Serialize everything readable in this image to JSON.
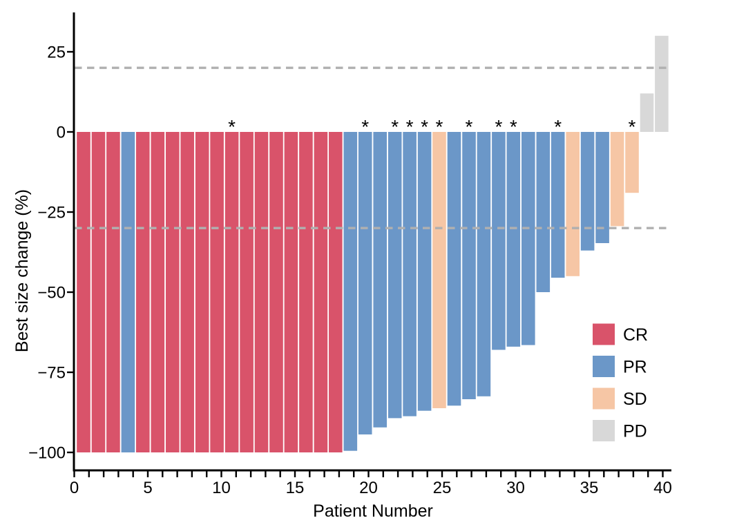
{
  "figure": {
    "kind": "waterfall-plot",
    "xlabel": "Patient Number",
    "ylabel": "Best size change (%)"
  },
  "legend": {
    "position": "inside-right",
    "items": [
      {
        "label": "CR",
        "color": "#d9536a"
      },
      {
        "label": "PR",
        "color": "#6b97c8"
      },
      {
        "label": "SD",
        "color": "#f6c6a5"
      },
      {
        "label": "PD",
        "color": "#d8d8d8"
      }
    ]
  },
  "colors": {
    "axis": "#000000",
    "reference_line": "#b0b0b0",
    "background": "#ffffff",
    "annotation": "#000000"
  },
  "chart_data": {
    "type": "bar",
    "subtype": "waterfall",
    "title": "",
    "xlabel": "Patient Number",
    "ylabel": "Best size change (%)",
    "grid": false,
    "x_ticks": [
      0,
      5,
      10,
      15,
      20,
      25,
      30,
      35,
      40
    ],
    "x_minor_tick_every": 1,
    "y_ticks": [
      25,
      0,
      -25,
      -50,
      -75,
      -100
    ],
    "ylim": [
      -105,
      36
    ],
    "xlim": [
      0,
      40.6
    ],
    "reference_lines": [
      {
        "y": 20,
        "style": "dashed"
      },
      {
        "y": -30,
        "style": "dashed"
      }
    ],
    "annotation_symbol": "*",
    "response_colors": {
      "CR": "#d9536a",
      "PR": "#6b97c8",
      "SD": "#f6c6a5",
      "PD": "#d8d8d8"
    },
    "patients": [
      {
        "patient": 1,
        "best_size_change_pct": -100,
        "response": "CR",
        "annotated": false
      },
      {
        "patient": 2,
        "best_size_change_pct": -100,
        "response": "CR",
        "annotated": false
      },
      {
        "patient": 3,
        "best_size_change_pct": -100,
        "response": "CR",
        "annotated": false
      },
      {
        "patient": 4,
        "best_size_change_pct": -100,
        "response": "PR",
        "annotated": false
      },
      {
        "patient": 5,
        "best_size_change_pct": -100,
        "response": "CR",
        "annotated": false
      },
      {
        "patient": 6,
        "best_size_change_pct": -100,
        "response": "CR",
        "annotated": false
      },
      {
        "patient": 7,
        "best_size_change_pct": -100,
        "response": "CR",
        "annotated": false
      },
      {
        "patient": 8,
        "best_size_change_pct": -100,
        "response": "CR",
        "annotated": false
      },
      {
        "patient": 9,
        "best_size_change_pct": -100,
        "response": "CR",
        "annotated": false
      },
      {
        "patient": 10,
        "best_size_change_pct": -100,
        "response": "CR",
        "annotated": false
      },
      {
        "patient": 11,
        "best_size_change_pct": -100,
        "response": "CR",
        "annotated": true
      },
      {
        "patient": 12,
        "best_size_change_pct": -100,
        "response": "CR",
        "annotated": false
      },
      {
        "patient": 13,
        "best_size_change_pct": -100,
        "response": "CR",
        "annotated": false
      },
      {
        "patient": 14,
        "best_size_change_pct": -100,
        "response": "CR",
        "annotated": false
      },
      {
        "patient": 15,
        "best_size_change_pct": -100,
        "response": "CR",
        "annotated": false
      },
      {
        "patient": 16,
        "best_size_change_pct": -100,
        "response": "CR",
        "annotated": false
      },
      {
        "patient": 17,
        "best_size_change_pct": -100,
        "response": "CR",
        "annotated": false
      },
      {
        "patient": 18,
        "best_size_change_pct": -100,
        "response": "CR",
        "annotated": false
      },
      {
        "patient": 19,
        "best_size_change_pct": -99.5,
        "response": "PR",
        "annotated": false
      },
      {
        "patient": 20,
        "best_size_change_pct": -94.4,
        "response": "PR",
        "annotated": true
      },
      {
        "patient": 21,
        "best_size_change_pct": -92.2,
        "response": "PR",
        "annotated": false
      },
      {
        "patient": 22,
        "best_size_change_pct": -89.3,
        "response": "PR",
        "annotated": true
      },
      {
        "patient": 23,
        "best_size_change_pct": -88.7,
        "response": "PR",
        "annotated": true
      },
      {
        "patient": 24,
        "best_size_change_pct": -87,
        "response": "PR",
        "annotated": true
      },
      {
        "patient": 25,
        "best_size_change_pct": -86.2,
        "response": "SD",
        "annotated": true
      },
      {
        "patient": 26,
        "best_size_change_pct": -85.4,
        "response": "PR",
        "annotated": false
      },
      {
        "patient": 27,
        "best_size_change_pct": -83.4,
        "response": "PR",
        "annotated": true
      },
      {
        "patient": 28,
        "best_size_change_pct": -82.5,
        "response": "PR",
        "annotated": false
      },
      {
        "patient": 29,
        "best_size_change_pct": -68,
        "response": "PR",
        "annotated": true
      },
      {
        "patient": 30,
        "best_size_change_pct": -67,
        "response": "PR",
        "annotated": true
      },
      {
        "patient": 31,
        "best_size_change_pct": -66.5,
        "response": "PR",
        "annotated": false
      },
      {
        "patient": 32,
        "best_size_change_pct": -50,
        "response": "PR",
        "annotated": false
      },
      {
        "patient": 33,
        "best_size_change_pct": -45.5,
        "response": "PR",
        "annotated": true
      },
      {
        "patient": 34,
        "best_size_change_pct": -45,
        "response": "SD",
        "annotated": false
      },
      {
        "patient": 35,
        "best_size_change_pct": -37,
        "response": "PR",
        "annotated": false
      },
      {
        "patient": 36,
        "best_size_change_pct": -34.7,
        "response": "PR",
        "annotated": false
      },
      {
        "patient": 37,
        "best_size_change_pct": -29.4,
        "response": "SD",
        "annotated": false
      },
      {
        "patient": 38,
        "best_size_change_pct": -19,
        "response": "SD",
        "annotated": true
      },
      {
        "patient": 39,
        "best_size_change_pct": 12,
        "response": "PD",
        "annotated": false
      },
      {
        "patient": 40,
        "best_size_change_pct": 30,
        "response": "PD",
        "annotated": false
      }
    ]
  }
}
